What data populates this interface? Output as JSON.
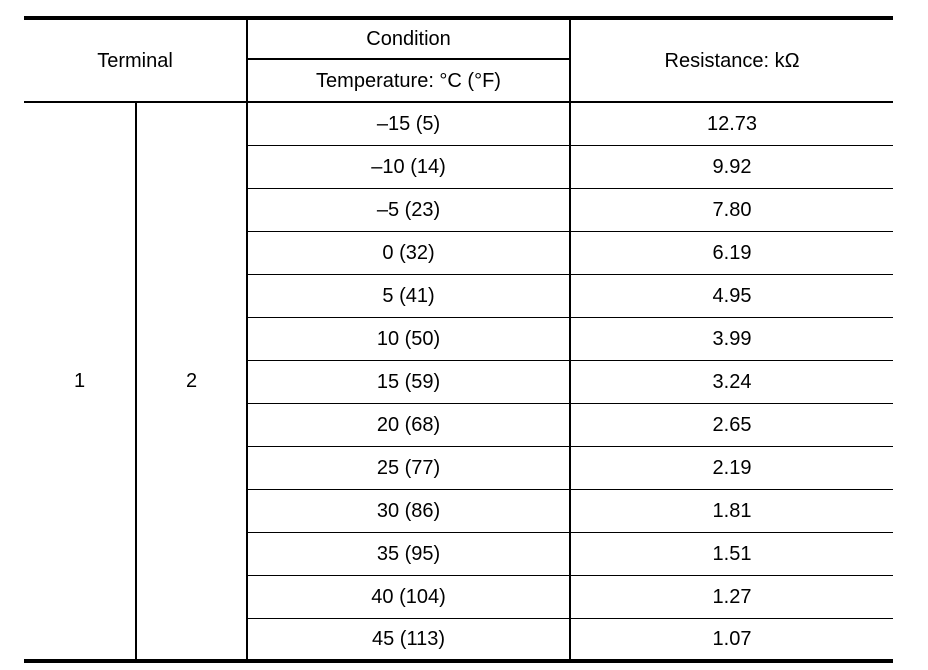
{
  "header": {
    "terminal": "Terminal",
    "condition": "Condition",
    "temperature": "Temperature: °C (°F)",
    "resistance": "Resistance: kΩ"
  },
  "terminals": {
    "first": "1",
    "second": "2"
  },
  "rows": [
    {
      "temperature": "–15 (5)",
      "resistance": "12.73"
    },
    {
      "temperature": "–10 (14)",
      "resistance": "9.92"
    },
    {
      "temperature": "–5 (23)",
      "resistance": "7.80"
    },
    {
      "temperature": "0 (32)",
      "resistance": "6.19"
    },
    {
      "temperature": "5 (41)",
      "resistance": "4.95"
    },
    {
      "temperature": "10 (50)",
      "resistance": "3.99"
    },
    {
      "temperature": "15 (59)",
      "resistance": "3.24"
    },
    {
      "temperature": "20 (68)",
      "resistance": "2.65"
    },
    {
      "temperature": "25 (77)",
      "resistance": "2.19"
    },
    {
      "temperature": "30 (86)",
      "resistance": "1.81"
    },
    {
      "temperature": "35 (95)",
      "resistance": "1.51"
    },
    {
      "temperature": "40 (104)",
      "resistance": "1.27"
    },
    {
      "temperature": "45 (113)",
      "resistance": "1.07"
    }
  ]
}
